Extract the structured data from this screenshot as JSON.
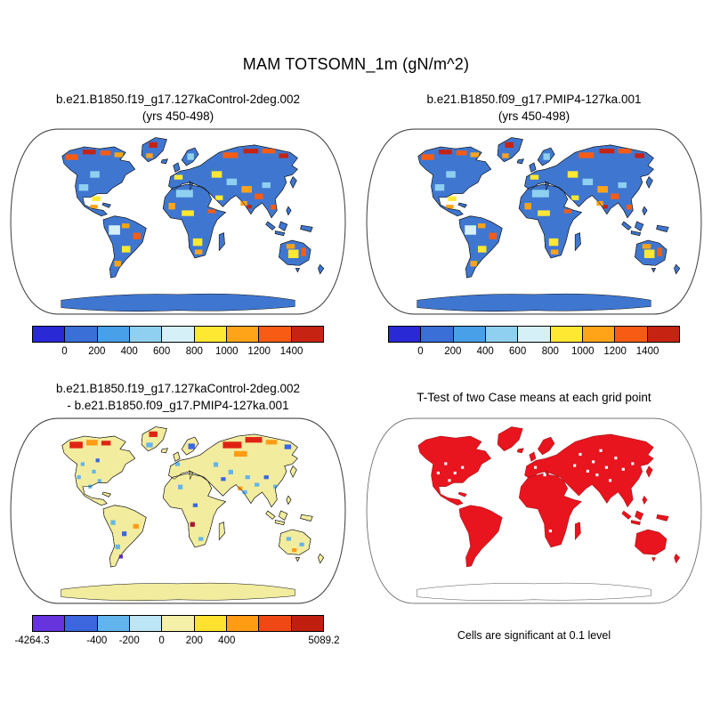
{
  "page_title": "MAM TOTSOMN_1m (gN/m^2)",
  "panels": {
    "top_left": {
      "title_line1": "b.e21.B1850.f19_g17.127kaControl-2deg.002",
      "title_line2": "(yrs 450-498)"
    },
    "top_right": {
      "title_line1": "b.e21.B1850.f09_g17.PMIP4-127ka.001",
      "title_line2": "(yrs 450-498)"
    },
    "bottom_left": {
      "title_line1": "b.e21.B1850.f19_g17.127kaControl-2deg.002",
      "title_line2": "- b.e21.B1850.f09_g17.PMIP4-127ka.001"
    },
    "bottom_right": {
      "title": "T-Test of two Case means at each grid point",
      "caption": "Cells are significant at 0.1 level"
    }
  },
  "chart_data": [
    {
      "type": "heatmap",
      "panel": "top_left",
      "projection": "Robinson world map",
      "title": "b.e21.B1850.f19_g17.127kaControl-2deg.002 (yrs 450-498)",
      "variable": "MAM TOTSOMN_1m (gN/m^2)",
      "land_base_color": "#3f77d0",
      "colorbar": {
        "colors": [
          "#2929d6",
          "#3a6fd8",
          "#47a0e8",
          "#8fd0f0",
          "#d6f0f8",
          "#ffe832",
          "#ffa418",
          "#f85c14",
          "#c62313"
        ],
        "ticks": [
          {
            "label": "0",
            "pos": 0.111
          },
          {
            "label": "200",
            "pos": 0.222
          },
          {
            "label": "400",
            "pos": 0.333
          },
          {
            "label": "600",
            "pos": 0.444
          },
          {
            "label": "800",
            "pos": 0.556
          },
          {
            "label": "1000",
            "pos": 0.667
          },
          {
            "label": "1200",
            "pos": 0.778
          },
          {
            "label": "1400",
            "pos": 0.889
          }
        ]
      }
    },
    {
      "type": "heatmap",
      "panel": "top_right",
      "projection": "Robinson world map",
      "title": "b.e21.B1850.f09_g17.PMIP4-127ka.001 (yrs 450-498)",
      "variable": "MAM TOTSOMN_1m (gN/m^2)",
      "land_base_color": "#3f77d0",
      "colorbar": {
        "colors": [
          "#2929d6",
          "#3a6fd8",
          "#47a0e8",
          "#8fd0f0",
          "#d6f0f8",
          "#ffe832",
          "#ffa418",
          "#f85c14",
          "#c62313"
        ],
        "ticks": [
          {
            "label": "0",
            "pos": 0.111
          },
          {
            "label": "200",
            "pos": 0.222
          },
          {
            "label": "400",
            "pos": 0.333
          },
          {
            "label": "600",
            "pos": 0.444
          },
          {
            "label": "800",
            "pos": 0.556
          },
          {
            "label": "1000",
            "pos": 0.667
          },
          {
            "label": "1200",
            "pos": 0.778
          },
          {
            "label": "1400",
            "pos": 0.889
          }
        ]
      }
    },
    {
      "type": "heatmap",
      "panel": "bottom_left",
      "projection": "Robinson world map",
      "title": "b.e21.B1850.f19_g17.127kaControl-2deg.002 - b.e21.B1850.f09_g17.PMIP4-127ka.001",
      "land_base_color": "#f2ec9e",
      "value_range": {
        "min": -4264.3,
        "max": 5089.2
      },
      "colorbar": {
        "colors": [
          "#6633dd",
          "#3b66dd",
          "#62b5ec",
          "#bce6f5",
          "#f5f0a8",
          "#ffe22e",
          "#ff9c14",
          "#f04814",
          "#c01f10"
        ],
        "ticks": [
          {
            "label": "-4264.3",
            "pos": 0
          },
          {
            "label": "-400",
            "pos": 0.222
          },
          {
            "label": "-200",
            "pos": 0.333
          },
          {
            "label": "0",
            "pos": 0.444
          },
          {
            "label": "200",
            "pos": 0.556
          },
          {
            "label": "400",
            "pos": 0.667
          },
          {
            "label": "5089.2",
            "pos": 1
          }
        ]
      }
    },
    {
      "type": "map",
      "panel": "bottom_right",
      "projection": "Robinson world map",
      "title": "T-Test of two Case means at each grid point",
      "significant_color": "#e8141e",
      "note": "Cells are significant at 0.1 level"
    }
  ]
}
